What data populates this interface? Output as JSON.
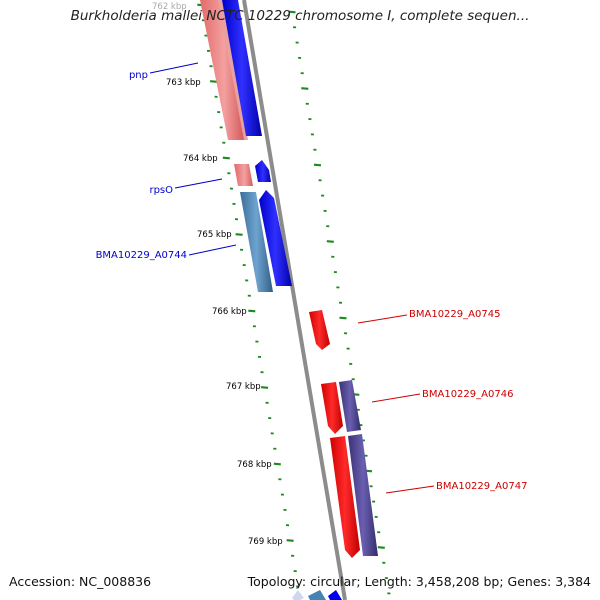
{
  "title": "Burkholderia mallei NCTC 10229 chromosome I, complete sequen...",
  "footer": {
    "accession": "Accession: NC_008836",
    "topology": "Topology: circular; Length: 3,458,208 bp; Genes: 3,384"
  },
  "colors": {
    "backbone": "#8a8a8a",
    "ticks": "#1f8a1f",
    "feature_pink": "#f08080",
    "feature_blue": "#0000ee",
    "feature_steel": "#4682b4",
    "feature_red": "#ee0000",
    "feature_purple": "#483d8b",
    "label_left": "#0000cc",
    "label_right": "#cc0000"
  },
  "kbp_labels": [
    "762 kbp",
    "763 kbp",
    "764 kbp",
    "765 kbp",
    "766 kbp",
    "767 kbp",
    "768 kbp",
    "769 kbp"
  ],
  "gene_labels": [
    {
      "text": "pnp",
      "side": "left"
    },
    {
      "text": "rpsO",
      "side": "left"
    },
    {
      "text": "BMA10229_A0744",
      "side": "left"
    },
    {
      "text": "BMA10229_A0745",
      "side": "right"
    },
    {
      "text": "BMA10229_A0746",
      "side": "right"
    },
    {
      "text": "BMA10229_A0747",
      "side": "right"
    }
  ]
}
